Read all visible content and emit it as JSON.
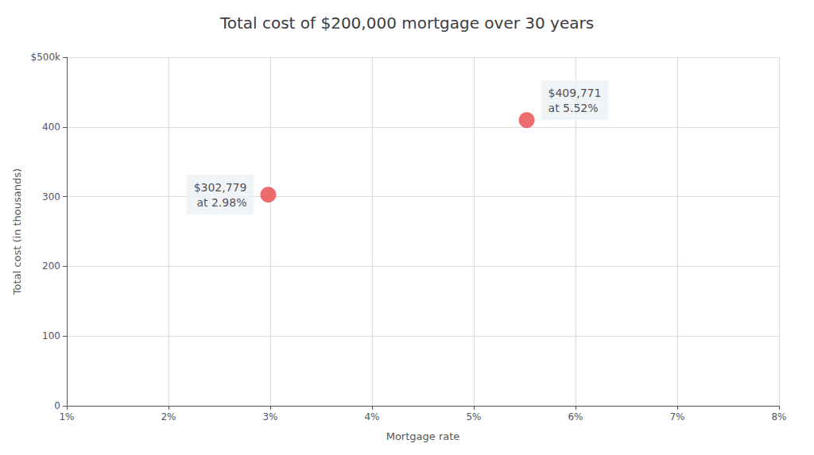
{
  "chart_data": {
    "type": "scatter",
    "title": "Total cost of $200,000 mortgage over 30 years",
    "xlabel": "Mortgage rate",
    "ylabel": "Total cost (in thousands)",
    "x": [
      2.98,
      5.52
    ],
    "values": [
      302.779,
      409.771
    ],
    "color": "#e8474a",
    "xlim": [
      1,
      8
    ],
    "xticks": [
      {
        "value": 1,
        "label": "1%"
      },
      {
        "value": 2,
        "label": "2%"
      },
      {
        "value": 3,
        "label": "3%"
      },
      {
        "value": 4,
        "label": "4%"
      },
      {
        "value": 5,
        "label": "5%"
      },
      {
        "value": 6,
        "label": "6%"
      },
      {
        "value": 7,
        "label": "7%"
      },
      {
        "value": 8,
        "label": "8%"
      }
    ],
    "ylim": [
      0,
      500
    ],
    "yticks": [
      0,
      100,
      200,
      300,
      400,
      {
        "value": 500,
        "label": "$500k"
      }
    ],
    "grid": true,
    "annotations": [
      {
        "x": 2.98,
        "y": 302.779,
        "text": "$302,779\nat 2.98%"
      },
      {
        "x": 5.52,
        "y": 409.771,
        "text": "$409,771\nat 5.52%"
      }
    ]
  }
}
